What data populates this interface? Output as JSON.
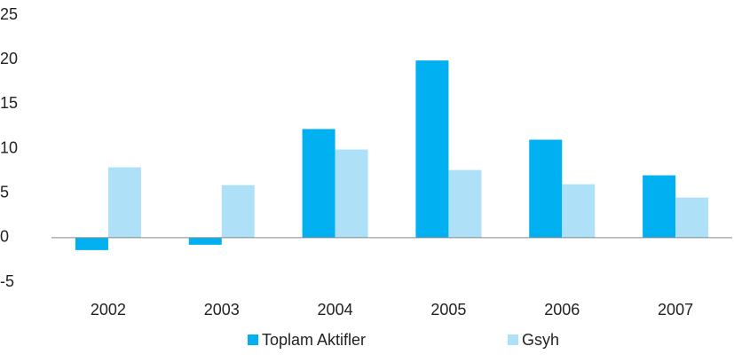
{
  "chart_data": {
    "type": "bar",
    "categories": [
      "2002",
      "2003",
      "2004",
      "2005",
      "2006",
      "2007"
    ],
    "series": [
      {
        "name": "Toplam Aktifler",
        "color": "#00b0f0",
        "values": [
          -1.4,
          -0.8,
          12.2,
          19.9,
          11.0,
          7.0
        ]
      },
      {
        "name": "Gsyh",
        "color": "#aee0f8",
        "values": [
          7.9,
          5.9,
          9.9,
          7.6,
          6.0,
          4.5
        ]
      }
    ],
    "ylim": [
      -5,
      25
    ],
    "yticks": [
      -5,
      0,
      5,
      10,
      15,
      20,
      25
    ],
    "grid": false,
    "legend": "bottom"
  }
}
